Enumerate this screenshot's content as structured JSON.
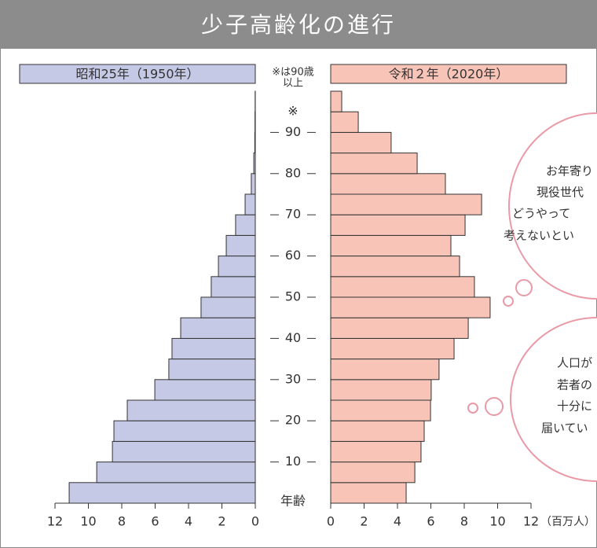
{
  "chart_data": {
    "type": "pyramid",
    "title": "少子高齢化の進行",
    "note": [
      "※は90歳",
      "以上"
    ],
    "y_label": "年齢",
    "x_unit": "（百万人）",
    "series": [
      {
        "name": "昭和25年（1950年）",
        "color": "#c5c9e6",
        "side": "left",
        "values": [
          11.15,
          9.5,
          8.56,
          8.47,
          7.67,
          6.02,
          5.18,
          4.99,
          4.47,
          3.25,
          2.64,
          2.21,
          1.74,
          1.18,
          0.61,
          0.24,
          0.09,
          0.03,
          0.02,
          0.01
        ]
      },
      {
        "name": "令和２年（2020年）",
        "color": "#f8c4b8",
        "side": "right",
        "values": [
          4.52,
          5.04,
          5.41,
          5.6,
          5.98,
          6.02,
          6.49,
          7.39,
          8.24,
          9.55,
          8.61,
          7.72,
          7.2,
          8.05,
          9.04,
          6.87,
          5.18,
          3.62,
          1.65,
          0.66
        ]
      }
    ],
    "xlim": [
      0,
      12
    ],
    "xticks": [
      0,
      2,
      4,
      6,
      8,
      10,
      12
    ],
    "ylim": [
      0,
      100
    ],
    "yticks": [
      10,
      20,
      30,
      40,
      50,
      60,
      70,
      80,
      90,
      {
        "value": 95,
        "label": "※"
      }
    ],
    "bubbles": [
      [
        "お年寄り",
        "現役世代",
        "どうやって",
        "考えないとい"
      ],
      [
        "人口が",
        "若者の",
        "十分に",
        "届いてい"
      ]
    ]
  }
}
